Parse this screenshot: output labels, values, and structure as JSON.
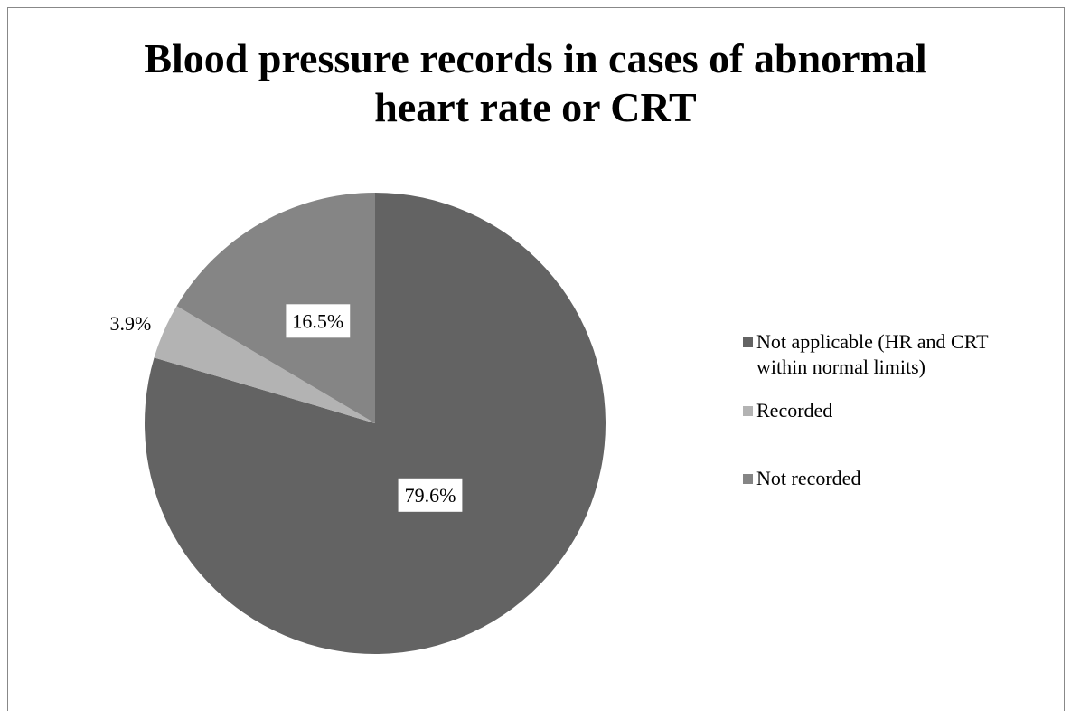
{
  "chart_data": {
    "type": "pie",
    "title": "Blood pressure records in cases of abnormal heart rate or CRT",
    "categories": [
      "Not applicable (HR and CRT within normal limits)",
      "Recorded",
      "Not recorded"
    ],
    "values": [
      79.6,
      3.9,
      16.5
    ],
    "value_labels": [
      "79.6%",
      "3.9%",
      "16.5%"
    ],
    "colors": [
      "#636363",
      "#b3b3b3",
      "#858585"
    ],
    "legend": "right"
  }
}
